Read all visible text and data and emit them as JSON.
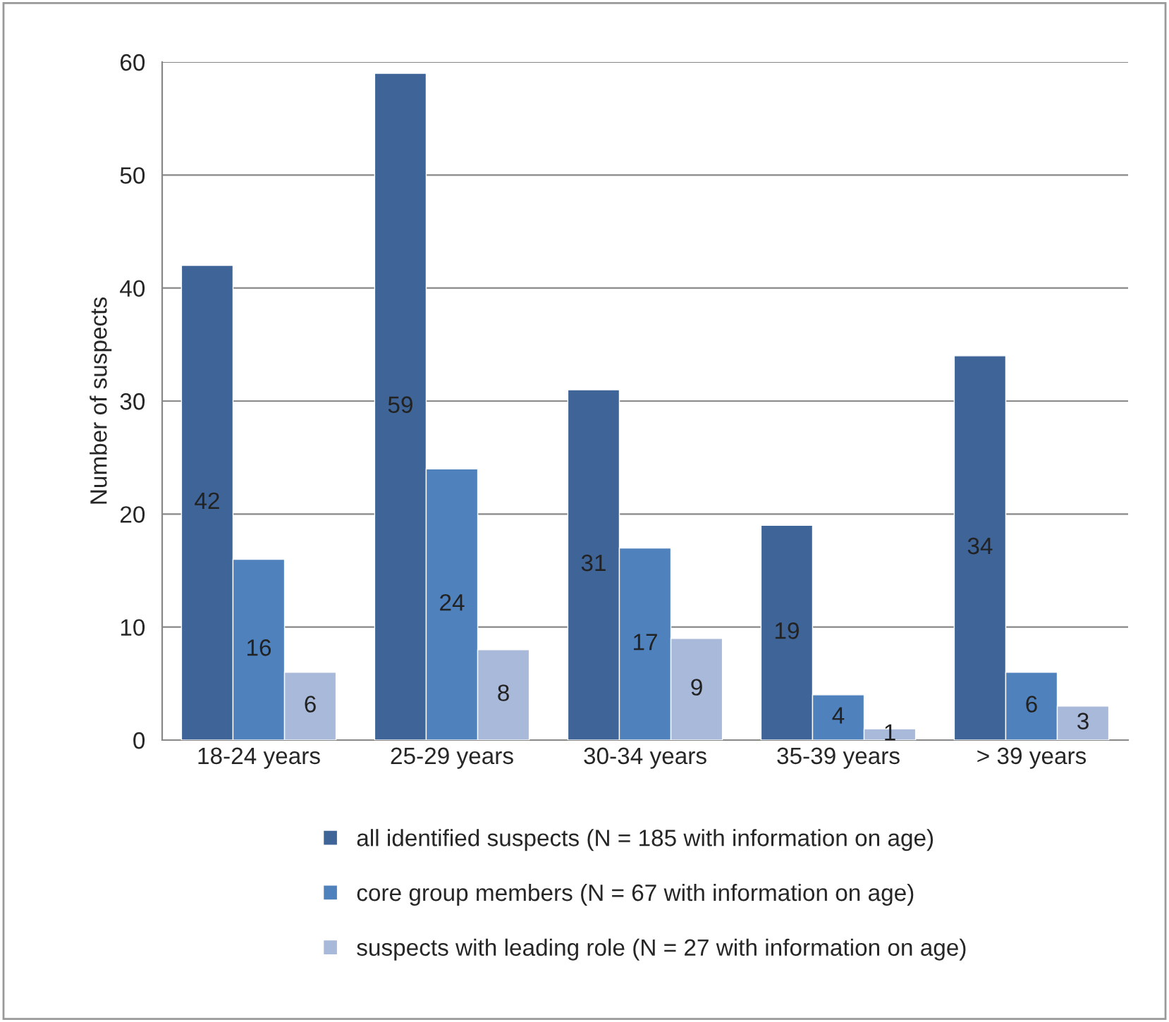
{
  "chart_data": {
    "type": "bar",
    "ylabel": "Number of suspects",
    "categories": [
      "18-24 years",
      "25-29 years",
      "30-34 years",
      "35-39 years",
      "> 39 years"
    ],
    "series": [
      {
        "name": "all identified suspects (N = 185 with information on age)",
        "color": "#3f6498",
        "values": [
          42,
          59,
          31,
          19,
          34
        ]
      },
      {
        "name": "core group members (N = 67 with information on age)",
        "color": "#4f81bd",
        "values": [
          16,
          24,
          17,
          4,
          6
        ]
      },
      {
        "name": "suspects with leading role (N = 27 with information on age)",
        "color": "#a9b9d9",
        "values": [
          6,
          8,
          9,
          1,
          3
        ]
      }
    ],
    "ylim": [
      0,
      60
    ],
    "yticks": [
      0,
      10,
      20,
      30,
      40,
      50,
      60
    ],
    "grid": "y",
    "legend": "bottom",
    "data_labels": true
  }
}
